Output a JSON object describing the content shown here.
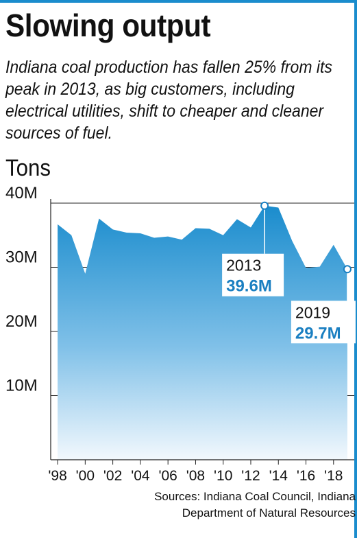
{
  "title": "Slowing output",
  "subtitle": "Indiana coal production has fallen 25% from its peak in 2013, as big customers, including electrical utilities, shift to cheaper and cleaner sources of fuel.",
  "source": {
    "line1": "Sources: Indiana Coal Council, Indiana",
    "line2": "Department of Natural Resources"
  },
  "colors": {
    "accent": "#1a8ccd",
    "label_value": "#1a7fc1"
  },
  "chart_data": {
    "type": "area",
    "title": "Slowing output",
    "ylabel": "Tons",
    "xlabel": "",
    "ylim": [
      0,
      40
    ],
    "y_unit": "M",
    "ytick_labels": [
      "10M",
      "20M",
      "30M",
      "40M"
    ],
    "ytick_values": [
      10,
      20,
      30,
      40
    ],
    "xlim": [
      1997.5,
      2019.5
    ],
    "xtick_labels": [
      "'98",
      "'00",
      "'02",
      "'04",
      "'06",
      "'08",
      "'10",
      "'12",
      "'14",
      "'16",
      "'18"
    ],
    "xtick_values": [
      1998,
      2000,
      2002,
      2004,
      2006,
      2008,
      2010,
      2012,
      2014,
      2016,
      2018
    ],
    "grid": true,
    "x": [
      1998,
      1999,
      2000,
      2001,
      2002,
      2003,
      2004,
      2005,
      2006,
      2007,
      2008,
      2009,
      2010,
      2011,
      2012,
      2013,
      2014,
      2015,
      2016,
      2017,
      2018,
      2019
    ],
    "values": [
      36.7,
      35.0,
      29.0,
      37.6,
      35.9,
      35.4,
      35.3,
      34.6,
      34.8,
      34.3,
      36.1,
      36.0,
      35.0,
      37.5,
      36.2,
      39.6,
      39.3,
      34.1,
      29.9,
      30.1,
      33.5,
      29.7
    ],
    "annotations": [
      {
        "year": "2013",
        "value": "39.6M",
        "x": 2013,
        "y": 39.6
      },
      {
        "year": "2019",
        "value": "29.7M",
        "x": 2019,
        "y": 29.7
      }
    ]
  }
}
